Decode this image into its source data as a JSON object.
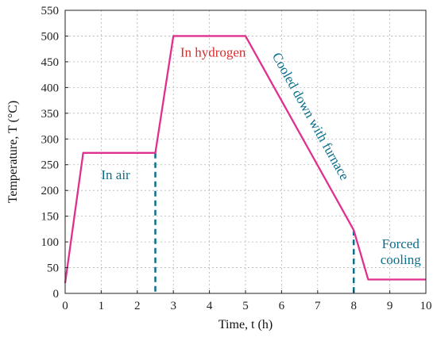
{
  "chart_data": {
    "type": "line",
    "xlabel": "Time, t (h)",
    "ylabel": "Temperature, T (°C)",
    "xlim": [
      0,
      10
    ],
    "ylim": [
      0,
      550
    ],
    "x_ticks": [
      0,
      1,
      2,
      3,
      4,
      5,
      6,
      7,
      8,
      9,
      10
    ],
    "y_ticks": [
      0,
      50,
      100,
      150,
      200,
      250,
      300,
      350,
      400,
      450,
      500,
      550
    ],
    "grid": true,
    "series": [
      {
        "color": "#e0308f",
        "x": [
          0,
          0.5,
          2.5,
          3.0,
          5.0,
          8.0,
          8.4,
          10
        ],
        "y": [
          20,
          273,
          273,
          500,
          500,
          123,
          27,
          27
        ]
      }
    ],
    "vertical_markers": [
      {
        "x": 2.5,
        "y_top": 273,
        "color": "#0a6e8c",
        "style": "dashed"
      },
      {
        "x": 8.0,
        "y_top": 123,
        "color": "#0a6e8c",
        "style": "dashed"
      }
    ],
    "annotations": [
      {
        "lines": [
          "In air"
        ],
        "color": "#0a6e8c",
        "x": 1.4,
        "y": 222
      },
      {
        "lines": [
          "In hydrogen"
        ],
        "color": "#d62b2b",
        "x": 4.1,
        "y": 460
      },
      {
        "lines": [
          "Cooled down with furnace"
        ],
        "color": "#0a6e8c",
        "x": 6.7,
        "y": 340,
        "rotate_along_segment": true
      },
      {
        "lines": [
          "Forced",
          "cooling"
        ],
        "color": "#0a6e8c",
        "x": 9.3,
        "y": 88
      }
    ]
  }
}
